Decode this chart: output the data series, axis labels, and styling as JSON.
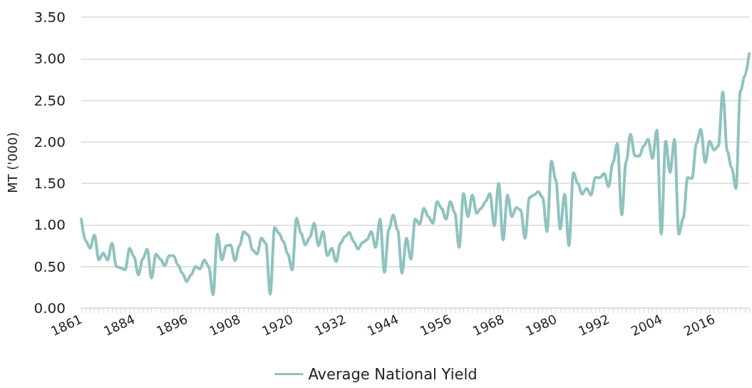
{
  "chart_data": {
    "type": "line",
    "ylabel": "MT ('000)",
    "categories": [
      "1861",
      null,
      null,
      null,
      null,
      null,
      null,
      null,
      null,
      null,
      null,
      null,
      "1884",
      null,
      null,
      null,
      null,
      null,
      null,
      null,
      null,
      null,
      null,
      null,
      "1896",
      null,
      null,
      null,
      null,
      null,
      null,
      null,
      null,
      null,
      null,
      null,
      "1908",
      null,
      null,
      null,
      null,
      null,
      null,
      null,
      null,
      null,
      null,
      null,
      "1920",
      null,
      null,
      null,
      null,
      null,
      null,
      null,
      null,
      null,
      null,
      null,
      "1932",
      null,
      null,
      null,
      null,
      null,
      null,
      null,
      null,
      null,
      null,
      null,
      "1944",
      null,
      null,
      null,
      null,
      null,
      null,
      null,
      null,
      null,
      null,
      null,
      "1956",
      null,
      null,
      null,
      null,
      null,
      null,
      null,
      null,
      null,
      null,
      null,
      "1968",
      null,
      null,
      null,
      null,
      null,
      null,
      null,
      null,
      null,
      null,
      null,
      "1980",
      null,
      null,
      null,
      null,
      null,
      null,
      null,
      null,
      null,
      null,
      null,
      "1992",
      null,
      null,
      null,
      null,
      null,
      null,
      null,
      null,
      null,
      null,
      null,
      "2004",
      null,
      null,
      null,
      null,
      null,
      null,
      null,
      null,
      null,
      null,
      null,
      "2016",
      null,
      null,
      null,
      null,
      null,
      null,
      null,
      null
    ],
    "series": [
      {
        "name": "Average National Yield",
        "color": "#8fc3bf",
        "values": [
          1.07,
          0.81,
          0.72,
          0.88,
          0.58,
          0.66,
          0.58,
          0.78,
          0.5,
          0.48,
          0.46,
          0.72,
          0.62,
          0.4,
          0.59,
          0.71,
          0.36,
          0.65,
          0.59,
          0.51,
          0.63,
          0.63,
          0.52,
          0.42,
          0.32,
          0.4,
          0.5,
          0.47,
          0.58,
          0.5,
          0.16,
          0.89,
          0.58,
          0.75,
          0.76,
          0.57,
          0.75,
          0.92,
          0.88,
          0.7,
          0.65,
          0.84,
          0.78,
          0.17,
          0.97,
          0.9,
          0.8,
          0.65,
          0.46,
          1.08,
          0.9,
          0.76,
          0.85,
          1.02,
          0.75,
          0.92,
          0.63,
          0.72,
          0.56,
          0.78,
          0.86,
          0.91,
          0.8,
          0.71,
          0.79,
          0.82,
          0.92,
          0.73,
          1.07,
          0.43,
          0.95,
          1.12,
          0.94,
          0.42,
          0.84,
          0.59,
          1.07,
          1.01,
          1.2,
          1.1,
          1.02,
          1.28,
          1.2,
          1.07,
          1.28,
          1.15,
          0.73,
          1.38,
          1.1,
          1.36,
          1.14,
          1.2,
          1.28,
          1.38,
          0.99,
          1.5,
          0.82,
          1.36,
          1.1,
          1.21,
          1.18,
          0.84,
          1.33,
          1.36,
          1.4,
          1.33,
          0.92,
          1.77,
          1.54,
          0.95,
          1.37,
          0.75,
          1.63,
          1.5,
          1.37,
          1.44,
          1.36,
          1.57,
          1.57,
          1.62,
          1.46,
          1.75,
          1.98,
          1.12,
          1.76,
          2.09,
          1.83,
          1.83,
          1.95,
          2.03,
          1.8,
          2.14,
          0.89,
          2.01,
          1.63,
          2.03,
          0.89,
          1.08,
          1.57,
          1.56,
          1.98,
          2.15,
          1.75,
          2.01,
          1.9,
          1.95,
          2.6,
          1.89,
          1.69,
          1.44,
          2.61,
          2.79,
          3.06
        ]
      }
    ],
    "ylim": [
      0,
      3.5
    ],
    "yticks": [
      {
        "value": 0,
        "label": "0.00"
      },
      {
        "value": 0.5,
        "label": "0.50"
      },
      {
        "value": 1,
        "label": "1.00"
      },
      {
        "value": 1.5,
        "label": "1.50"
      },
      {
        "value": 2,
        "label": "2.00"
      },
      {
        "value": 2.5,
        "label": "2.50"
      },
      {
        "value": 3,
        "label": "3.00"
      },
      {
        "value": 3.5,
        "label": "3.50"
      }
    ],
    "grid": "y",
    "legend": "bottom",
    "marker": "none",
    "line_style": "solid"
  }
}
